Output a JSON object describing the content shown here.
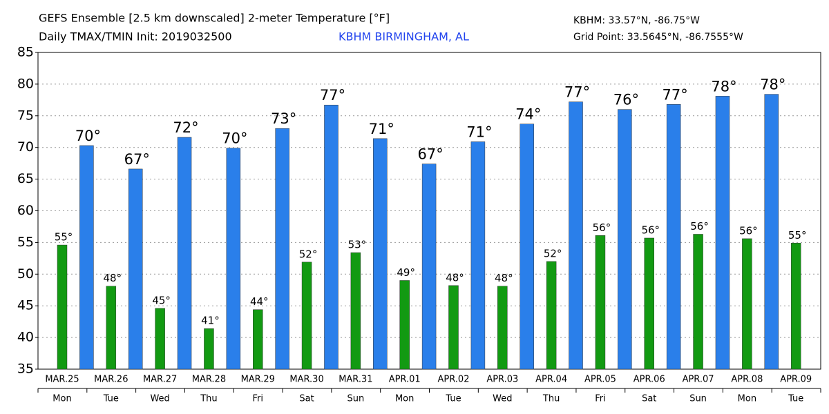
{
  "chart_data": {
    "type": "bar",
    "title": "GEFS Ensemble [2.5 km downscaled] 2-meter Temperature [°F]",
    "subtitle": "Daily TMAX/TMIN Init: 2019032500",
    "station": "KBHM BIRMINGHAM, AL",
    "station_coords": "KBHM: 33.57°N, -86.75°W",
    "grid_point": "Grid Point: 33.5645°N, -86.7555°W",
    "categories": [
      "MAR.25",
      "MAR.26",
      "MAR.27",
      "MAR.28",
      "MAR.29",
      "MAR.30",
      "MAR.31",
      "APR.01",
      "APR.02",
      "APR.03",
      "APR.04",
      "APR.05",
      "APR.06",
      "APR.07",
      "APR.08",
      "APR.09"
    ],
    "weekdays": [
      "Mon",
      "Tue",
      "Wed",
      "Thu",
      "Fri",
      "Sat",
      "Sun",
      "Mon",
      "Tue",
      "Wed",
      "Thu",
      "Fri",
      "Sat",
      "Sun",
      "Mon",
      "Tue"
    ],
    "series": [
      {
        "color": "#129a12",
        "values": [
          54.6,
          48.1,
          44.6,
          41.4,
          44.4,
          51.9,
          53.4,
          49.0,
          48.2,
          48.1,
          52.0,
          56.1,
          55.7,
          56.3,
          55.6,
          54.9
        ],
        "value_labels": [
          "55°",
          "48°",
          "45°",
          "41°",
          "44°",
          "52°",
          "53°",
          "49°",
          "48°",
          "48°",
          "52°",
          "56°",
          "56°",
          "56°",
          "56°",
          "55°"
        ]
      },
      {
        "color": "#2a7fea",
        "values": [
          70.3,
          66.6,
          71.6,
          69.9,
          73.0,
          76.7,
          71.4,
          67.4,
          70.9,
          73.7,
          77.2,
          76.0,
          76.8,
          78.1,
          78.4,
          null
        ],
        "value_labels": [
          "70°",
          "67°",
          "72°",
          "70°",
          "73°",
          "77°",
          "71°",
          "67°",
          "71°",
          "74°",
          "77°",
          "76°",
          "77°",
          "78°",
          "78°",
          null
        ]
      }
    ],
    "ylim": [
      35,
      85
    ],
    "yticks": [
      35,
      40,
      45,
      50,
      55,
      60,
      65,
      70,
      75,
      80,
      85
    ],
    "grid": true
  }
}
